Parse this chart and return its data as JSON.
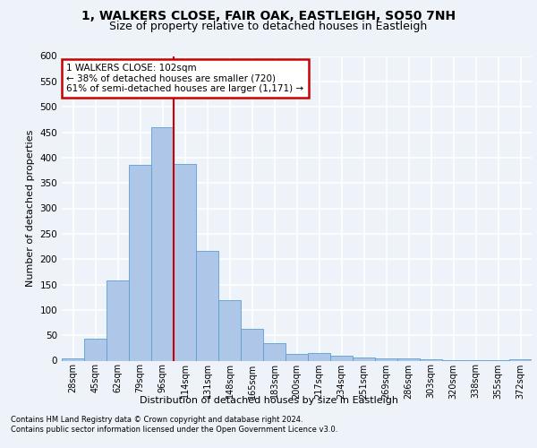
{
  "title_line1": "1, WALKERS CLOSE, FAIR OAK, EASTLEIGH, SO50 7NH",
  "title_line2": "Size of property relative to detached houses in Eastleigh",
  "xlabel": "Distribution of detached houses by size in Eastleigh",
  "ylabel": "Number of detached properties",
  "bar_labels": [
    "28sqm",
    "45sqm",
    "62sqm",
    "79sqm",
    "96sqm",
    "114sqm",
    "131sqm",
    "148sqm",
    "165sqm",
    "183sqm",
    "200sqm",
    "217sqm",
    "234sqm",
    "251sqm",
    "269sqm",
    "286sqm",
    "303sqm",
    "320sqm",
    "338sqm",
    "355sqm",
    "372sqm"
  ],
  "bar_values": [
    5,
    43,
    158,
    385,
    460,
    388,
    217,
    120,
    63,
    35,
    14,
    15,
    10,
    7,
    4,
    4,
    2,
    1,
    1,
    1,
    2
  ],
  "bar_color": "#aec6e8",
  "bar_edge_color": "#5a9fd4",
  "vline_x": 4.5,
  "vline_color": "#cc0000",
  "annotation_text": "1 WALKERS CLOSE: 102sqm\n← 38% of detached houses are smaller (720)\n61% of semi-detached houses are larger (1,171) →",
  "annotation_box_color": "#cc0000",
  "ylim": [
    0,
    600
  ],
  "yticks": [
    0,
    50,
    100,
    150,
    200,
    250,
    300,
    350,
    400,
    450,
    500,
    550,
    600
  ],
  "footer_line1": "Contains HM Land Registry data © Crown copyright and database right 2024.",
  "footer_line2": "Contains public sector information licensed under the Open Government Licence v3.0.",
  "bg_color": "#eef2f9",
  "grid_color": "#ffffff",
  "title_fontsize": 10,
  "subtitle_fontsize": 9,
  "ylabel_fontsize": 8,
  "xlabel_fontsize": 8,
  "tick_fontsize": 7,
  "footer_fontsize": 6,
  "ann_fontsize": 7.5
}
